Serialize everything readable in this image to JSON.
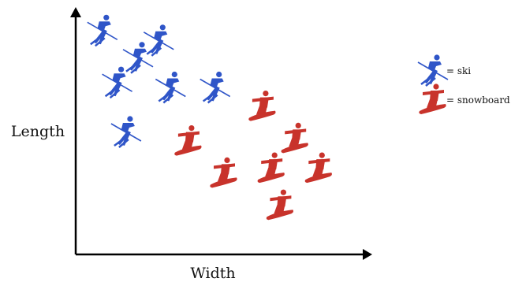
{
  "chart_data": {
    "type": "scatter",
    "title": "",
    "xlabel": "Width",
    "ylabel": "Length",
    "grid": false,
    "legend_position": "right",
    "series": [
      {
        "name": "ski",
        "marker": "skier-icon",
        "color": "#2f55c8",
        "points": [
          [
            0.09,
            0.91
          ],
          [
            0.28,
            0.87
          ],
          [
            0.21,
            0.8
          ],
          [
            0.14,
            0.7
          ],
          [
            0.32,
            0.68
          ],
          [
            0.47,
            0.68
          ],
          [
            0.17,
            0.5
          ]
        ]
      },
      {
        "name": "snowboard",
        "marker": "snowboarder-icon",
        "color": "#c8332b",
        "points": [
          [
            0.63,
            0.6
          ],
          [
            0.38,
            0.46
          ],
          [
            0.74,
            0.47
          ],
          [
            0.5,
            0.33
          ],
          [
            0.66,
            0.35
          ],
          [
            0.82,
            0.35
          ],
          [
            0.69,
            0.2
          ]
        ]
      }
    ],
    "legend": [
      {
        "label": "= ski",
        "marker": "skier-icon"
      },
      {
        "label": "= snowboard",
        "marker": "snowboarder-icon"
      }
    ]
  }
}
